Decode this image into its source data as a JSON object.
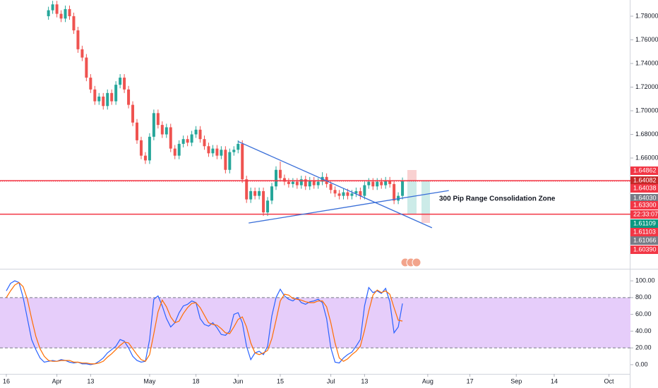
{
  "chart_data": [
    {
      "type": "candlestick",
      "xlim": [
        -1.5,
        148.1
      ],
      "ylim": [
        1.5669,
        1.7937
      ],
      "yticks": [
        {
          "value": 1.78,
          "label": "1.78000"
        },
        {
          "value": 1.76,
          "label": "1.76000"
        },
        {
          "value": 1.74,
          "label": "1.74000"
        },
        {
          "value": 1.72,
          "label": "1.72000"
        },
        {
          "value": 1.7,
          "label": "1.70000"
        },
        {
          "value": 1.68,
          "label": "1.68000"
        },
        {
          "value": 1.66,
          "label": "1.66000"
        }
      ],
      "up_color": "#26a69a",
      "down_color": "#ef5350",
      "x": [
        10,
        11,
        12,
        13,
        14,
        15,
        16,
        17,
        18,
        19,
        20,
        21,
        22,
        23,
        24,
        25,
        26,
        27,
        28,
        29,
        30,
        31,
        32,
        33,
        34,
        35,
        36,
        37,
        38,
        39,
        40,
        41,
        42,
        43,
        44,
        45,
        46,
        47,
        48,
        49,
        50,
        51,
        52,
        53,
        54,
        55,
        56,
        57,
        58,
        59,
        60,
        61,
        62,
        63,
        64,
        65,
        66,
        67,
        68,
        69,
        70,
        71,
        72,
        73,
        74,
        75,
        76,
        77,
        78,
        79,
        80,
        81,
        82,
        83,
        84,
        85,
        86,
        87,
        88,
        89,
        90,
        91,
        92,
        93,
        94
      ],
      "open": [
        1.78,
        1.785,
        1.79,
        1.782,
        1.778,
        1.786,
        1.78,
        1.768,
        1.752,
        1.745,
        1.728,
        1.718,
        1.708,
        1.712,
        1.704,
        1.715,
        1.708,
        1.722,
        1.728,
        1.718,
        1.705,
        1.69,
        1.675,
        1.662,
        1.658,
        1.678,
        1.698,
        1.688,
        1.68,
        1.686,
        1.668,
        1.662,
        1.672,
        1.676,
        1.673,
        1.68,
        1.684,
        1.676,
        1.67,
        1.664,
        1.668,
        1.662,
        1.667,
        1.65,
        1.665,
        1.667,
        1.672,
        1.642,
        1.625,
        1.632,
        1.628,
        1.632,
        1.614,
        1.624,
        1.636,
        1.65,
        1.643,
        1.64,
        1.638,
        1.64,
        1.637,
        1.642,
        1.636,
        1.641,
        1.637,
        1.64,
        1.644,
        1.638,
        1.633,
        1.63,
        1.628,
        1.631,
        1.628,
        1.63,
        1.632,
        1.628,
        1.637,
        1.64,
        1.636,
        1.64,
        1.637,
        1.641,
        1.638,
        1.624,
        1.628
      ],
      "high": [
        1.788,
        1.793,
        1.793,
        1.785,
        1.789,
        1.789,
        1.783,
        1.771,
        1.755,
        1.748,
        1.731,
        1.721,
        1.715,
        1.715,
        1.718,
        1.718,
        1.725,
        1.731,
        1.731,
        1.721,
        1.708,
        1.693,
        1.678,
        1.665,
        1.681,
        1.701,
        1.701,
        1.691,
        1.689,
        1.689,
        1.671,
        1.675,
        1.679,
        1.679,
        1.683,
        1.687,
        1.687,
        1.679,
        1.673,
        1.671,
        1.671,
        1.67,
        1.67,
        1.668,
        1.67,
        1.675,
        1.675,
        1.645,
        1.635,
        1.635,
        1.635,
        1.635,
        1.627,
        1.639,
        1.653,
        1.657,
        1.646,
        1.643,
        1.643,
        1.643,
        1.645,
        1.645,
        1.644,
        1.644,
        1.643,
        1.648,
        1.647,
        1.641,
        1.636,
        1.633,
        1.634,
        1.634,
        1.633,
        1.635,
        1.635,
        1.64,
        1.643,
        1.643,
        1.643,
        1.643,
        1.644,
        1.644,
        1.641,
        1.631,
        1.6435
      ],
      "low": [
        1.777,
        1.782,
        1.779,
        1.775,
        1.775,
        1.777,
        1.765,
        1.749,
        1.742,
        1.725,
        1.715,
        1.705,
        1.705,
        1.701,
        1.701,
        1.705,
        1.705,
        1.719,
        1.715,
        1.702,
        1.687,
        1.672,
        1.659,
        1.655,
        1.655,
        1.675,
        1.685,
        1.677,
        1.677,
        1.665,
        1.659,
        1.659,
        1.669,
        1.67,
        1.67,
        1.677,
        1.673,
        1.667,
        1.661,
        1.661,
        1.659,
        1.659,
        1.647,
        1.647,
        1.662,
        1.664,
        1.639,
        1.622,
        1.622,
        1.625,
        1.625,
        1.611,
        1.611,
        1.621,
        1.633,
        1.64,
        1.637,
        1.635,
        1.635,
        1.634,
        1.634,
        1.633,
        1.633,
        1.634,
        1.634,
        1.637,
        1.635,
        1.63,
        1.627,
        1.625,
        1.625,
        1.625,
        1.625,
        1.627,
        1.625,
        1.625,
        1.634,
        1.633,
        1.633,
        1.634,
        1.634,
        1.635,
        1.621,
        1.621,
        1.625
      ],
      "close": [
        1.785,
        1.79,
        1.782,
        1.778,
        1.786,
        1.78,
        1.768,
        1.752,
        1.745,
        1.728,
        1.718,
        1.708,
        1.712,
        1.704,
        1.715,
        1.708,
        1.722,
        1.728,
        1.718,
        1.705,
        1.69,
        1.675,
        1.662,
        1.658,
        1.678,
        1.698,
        1.688,
        1.68,
        1.686,
        1.668,
        1.662,
        1.672,
        1.676,
        1.673,
        1.68,
        1.684,
        1.676,
        1.67,
        1.664,
        1.668,
        1.662,
        1.667,
        1.65,
        1.665,
        1.667,
        1.672,
        1.642,
        1.625,
        1.632,
        1.628,
        1.632,
        1.614,
        1.624,
        1.636,
        1.65,
        1.643,
        1.64,
        1.638,
        1.64,
        1.637,
        1.642,
        1.636,
        1.641,
        1.637,
        1.64,
        1.644,
        1.638,
        1.633,
        1.63,
        1.628,
        1.631,
        1.628,
        1.63,
        1.632,
        1.628,
        1.637,
        1.64,
        1.636,
        1.64,
        1.637,
        1.641,
        1.638,
        1.624,
        1.628,
        1.6405
      ],
      "hlines": [
        {
          "value": 1.6408,
          "color": "#f23645",
          "style": "solid"
        },
        {
          "value": 1.6125,
          "color": "#f23645",
          "style": "solid"
        },
        {
          "value": 1.64038,
          "color": "#f23645",
          "style": "dotted"
        }
      ],
      "trendlines": [
        {
          "x": [
            55,
            101
          ],
          "y": [
            1.674,
            1.601
          ],
          "color": "#3a6fd8"
        },
        {
          "x": [
            57.5,
            105
          ],
          "y": [
            1.605,
            1.6325
          ],
          "color": "#3a6fd8"
        }
      ],
      "annotation": "300 Pip Range Consolidation Zone",
      "price_labels": [
        {
          "label": "1.64862",
          "color": "#f23645"
        },
        {
          "label": "1.64082",
          "color": "#c62828"
        },
        {
          "label": "1.64038",
          "color": "#f23645"
        },
        {
          "label": "1.64030",
          "color": "#787b86"
        },
        {
          "label": "1.63300",
          "color": "#f23645"
        },
        {
          "label": "22:33:07",
          "color": "#f23645"
        },
        {
          "label": "1.61109",
          "color": "#089981"
        },
        {
          "label": "1.61103",
          "color": "#f23645"
        },
        {
          "label": "1.61066",
          "color": "#787b86"
        },
        {
          "label": "1.60390",
          "color": "#f23645"
        }
      ]
    },
    {
      "type": "line",
      "xlim": [
        -1.5,
        148.1
      ],
      "ylim": [
        -11,
        112.7
      ],
      "yticks": [
        {
          "value": 100,
          "label": "100.00"
        },
        {
          "value": 80,
          "label": "80.00"
        },
        {
          "value": 60,
          "label": "60.00"
        },
        {
          "value": 40,
          "label": "40.00"
        },
        {
          "value": 20,
          "label": "20.00"
        },
        {
          "value": 0,
          "label": "0.00"
        }
      ],
      "band": [
        20,
        80
      ],
      "band_color": "#e6cdfa",
      "xticks": [
        {
          "value": 0,
          "label": "16"
        },
        {
          "value": 12,
          "label": "Apr"
        },
        {
          "value": 20,
          "label": "13"
        },
        {
          "value": 34,
          "label": "May"
        },
        {
          "value": 45,
          "label": "18"
        },
        {
          "value": 55,
          "label": "Jun"
        },
        {
          "value": 65,
          "label": "15"
        },
        {
          "value": 77,
          "label": "Jul"
        },
        {
          "value": 85,
          "label": "13"
        },
        {
          "value": 100,
          "label": "Aug"
        },
        {
          "value": 110,
          "label": "17"
        },
        {
          "value": 121,
          "label": "Sep"
        },
        {
          "value": 130,
          "label": "14"
        },
        {
          "value": 143,
          "label": "Oct"
        }
      ],
      "x": [
        0,
        1,
        2,
        3,
        4,
        5,
        6,
        7,
        8,
        9,
        10,
        11,
        12,
        13,
        14,
        15,
        16,
        17,
        18,
        19,
        20,
        21,
        22,
        23,
        24,
        25,
        26,
        27,
        28,
        29,
        30,
        31,
        32,
        33,
        34,
        35,
        36,
        37,
        38,
        39,
        40,
        41,
        42,
        43,
        44,
        45,
        46,
        47,
        48,
        49,
        50,
        51,
        52,
        53,
        54,
        55,
        56,
        57,
        58,
        59,
        60,
        61,
        62,
        63,
        64,
        65,
        66,
        67,
        68,
        69,
        70,
        71,
        72,
        73,
        74,
        75,
        76,
        77,
        78,
        79,
        80,
        81,
        82,
        83,
        84,
        85,
        86,
        87,
        88,
        89,
        90,
        91,
        92,
        93,
        94
      ],
      "series": [
        {
          "color": "#2962ff",
          "values": [
            88,
            97,
            100,
            98,
            80,
            55,
            30,
            18,
            8,
            3,
            4,
            5,
            4,
            6,
            5,
            3,
            2,
            3,
            1,
            1,
            0,
            1,
            4,
            8,
            14,
            18,
            22,
            30,
            28,
            20,
            10,
            5,
            3,
            4,
            30,
            78,
            82,
            70,
            55,
            45,
            50,
            62,
            70,
            72,
            76,
            74,
            55,
            48,
            46,
            50,
            44,
            36,
            35,
            40,
            60,
            62,
            50,
            22,
            6,
            14,
            16,
            12,
            22,
            58,
            80,
            90,
            82,
            78,
            76,
            80,
            74,
            72,
            75,
            76,
            78,
            74,
            55,
            20,
            3,
            2,
            8,
            12,
            15,
            22,
            30,
            70,
            92,
            86,
            88,
            85,
            91,
            75,
            38,
            45,
            73
          ]
        },
        {
          "color": "#ff6d00",
          "values": [
            80,
            88,
            95,
            98,
            93,
            78,
            55,
            34,
            19,
            10,
            5,
            4,
            4,
            5,
            5,
            5,
            3,
            3,
            2,
            2,
            1,
            1,
            2,
            4,
            9,
            13,
            18,
            23,
            27,
            26,
            19,
            12,
            6,
            4,
            12,
            37,
            63,
            77,
            69,
            57,
            50,
            52,
            61,
            68,
            73,
            74,
            68,
            59,
            50,
            48,
            47,
            43,
            38,
            37,
            45,
            54,
            57,
            45,
            26,
            14,
            12,
            14,
            17,
            31,
            53,
            76,
            84,
            83,
            79,
            78,
            77,
            75,
            74,
            74,
            76,
            76,
            69,
            50,
            26,
            8,
            4,
            7,
            12,
            16,
            22,
            41,
            64,
            83,
            89,
            86,
            88,
            84,
            68,
            53,
            52
          ]
        }
      ]
    }
  ]
}
